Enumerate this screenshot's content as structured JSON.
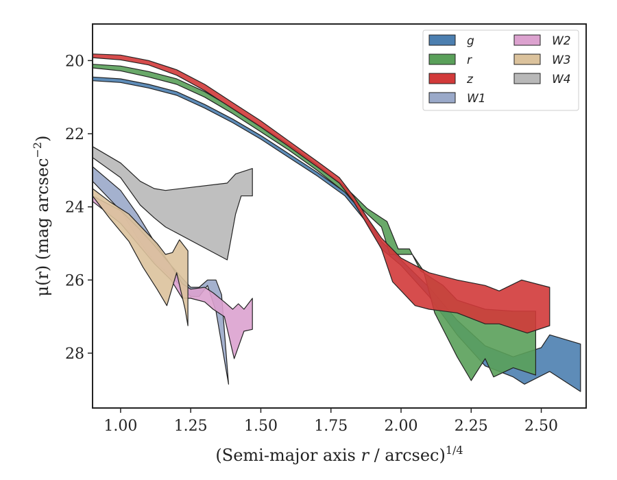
{
  "chart_data": {
    "type": "area",
    "xlabel": "(Semi-major axis r / arcsec)",
    "xlabel_italic": "r",
    "xlabel_exponent": "1/4",
    "ylabel": "μ(r) (mag arcsec",
    "ylabel_exponent": "−2",
    "ylabel_close": ")",
    "xlim": [
      0.9,
      2.66
    ],
    "ylim": [
      29.5,
      19.0
    ],
    "y_inverted": true,
    "x_ticks": [
      1.0,
      1.25,
      1.5,
      1.75,
      2.0,
      2.25,
      2.5
    ],
    "x_tick_labels": [
      "1.00",
      "1.25",
      "1.50",
      "1.75",
      "2.00",
      "2.25",
      "2.50"
    ],
    "y_ticks": [
      20,
      22,
      24,
      26,
      28
    ],
    "y_tick_labels": [
      "20",
      "22",
      "24",
      "26",
      "28"
    ],
    "grid": false,
    "legend_position": "top-right",
    "legend_columns": 2,
    "series": [
      {
        "name": "W4",
        "color": "#b8b8b8",
        "upper": [
          [
            0.9,
            22.35
          ],
          [
            1.0,
            22.8
          ],
          [
            1.07,
            23.3
          ],
          [
            1.12,
            23.5
          ],
          [
            1.16,
            23.55
          ],
          [
            1.38,
            23.35
          ],
          [
            1.41,
            23.1
          ],
          [
            1.47,
            22.95
          ]
        ],
        "lower": [
          [
            0.9,
            22.65
          ],
          [
            1.0,
            23.2
          ],
          [
            1.07,
            23.95
          ],
          [
            1.12,
            24.3
          ],
          [
            1.16,
            24.55
          ],
          [
            1.38,
            25.45
          ],
          [
            1.41,
            24.2
          ],
          [
            1.43,
            23.7
          ],
          [
            1.47,
            23.7
          ]
        ]
      },
      {
        "name": "W1",
        "color": "#9aa9c9",
        "upper": [
          [
            0.9,
            22.9
          ],
          [
            1.0,
            23.55
          ],
          [
            1.06,
            24.2
          ],
          [
            1.12,
            24.95
          ],
          [
            1.18,
            25.6
          ],
          [
            1.22,
            25.95
          ],
          [
            1.25,
            26.2
          ],
          [
            1.28,
            26.2
          ],
          [
            1.31,
            26.0
          ],
          [
            1.34,
            26.0
          ],
          [
            1.36,
            26.4
          ]
        ],
        "lower": [
          [
            0.9,
            23.3
          ],
          [
            1.0,
            24.1
          ],
          [
            1.06,
            24.85
          ],
          [
            1.12,
            25.5
          ],
          [
            1.18,
            25.9
          ],
          [
            1.22,
            26.2
          ],
          [
            1.25,
            26.45
          ],
          [
            1.28,
            26.45
          ],
          [
            1.31,
            26.15
          ],
          [
            1.34,
            26.85
          ],
          [
            1.385,
            28.85
          ]
        ]
      },
      {
        "name": "W2",
        "color": "#dca2cf",
        "upper": [
          [
            0.9,
            23.7
          ],
          [
            1.0,
            24.1
          ],
          [
            1.06,
            24.55
          ],
          [
            1.12,
            25.05
          ],
          [
            1.18,
            25.6
          ],
          [
            1.22,
            26.1
          ],
          [
            1.25,
            26.25
          ],
          [
            1.3,
            26.2
          ],
          [
            1.33,
            26.35
          ],
          [
            1.37,
            26.6
          ],
          [
            1.4,
            26.8
          ],
          [
            1.42,
            26.65
          ],
          [
            1.44,
            26.8
          ],
          [
            1.47,
            26.5
          ]
        ],
        "lower": [
          [
            0.9,
            23.85
          ],
          [
            1.0,
            24.45
          ],
          [
            1.06,
            25.0
          ],
          [
            1.12,
            25.55
          ],
          [
            1.18,
            26.0
          ],
          [
            1.22,
            26.5
          ],
          [
            1.25,
            26.5
          ],
          [
            1.3,
            26.6
          ],
          [
            1.33,
            26.8
          ],
          [
            1.37,
            27.0
          ],
          [
            1.405,
            28.15
          ],
          [
            1.44,
            27.4
          ],
          [
            1.47,
            27.35
          ]
        ]
      },
      {
        "name": "W3",
        "color": "#dbc29c",
        "upper": [
          [
            0.9,
            23.5
          ],
          [
            0.96,
            23.85
          ],
          [
            1.03,
            24.2
          ],
          [
            1.08,
            24.6
          ],
          [
            1.13,
            25.0
          ],
          [
            1.16,
            25.3
          ],
          [
            1.185,
            25.25
          ],
          [
            1.21,
            24.9
          ],
          [
            1.24,
            25.2
          ]
        ],
        "lower": [
          [
            0.9,
            23.7
          ],
          [
            0.96,
            24.3
          ],
          [
            1.03,
            24.95
          ],
          [
            1.08,
            25.65
          ],
          [
            1.13,
            26.25
          ],
          [
            1.165,
            26.7
          ],
          [
            1.2,
            25.8
          ],
          [
            1.23,
            26.8
          ],
          [
            1.24,
            27.25
          ]
        ]
      },
      {
        "name": "g",
        "color": "#4c7fb0",
        "upper": [
          [
            0.9,
            20.45
          ],
          [
            1.0,
            20.5
          ],
          [
            1.1,
            20.65
          ],
          [
            1.2,
            20.85
          ],
          [
            1.3,
            21.2
          ],
          [
            1.4,
            21.6
          ],
          [
            1.5,
            22.05
          ],
          [
            1.6,
            22.55
          ],
          [
            1.7,
            23.05
          ],
          [
            1.8,
            23.6
          ],
          [
            1.88,
            24.3
          ],
          [
            1.93,
            24.95
          ],
          [
            2.0,
            25.45
          ],
          [
            2.1,
            26.2
          ],
          [
            2.2,
            27.1
          ],
          [
            2.3,
            27.8
          ],
          [
            2.4,
            28.1
          ],
          [
            2.5,
            27.85
          ],
          [
            2.53,
            27.5
          ],
          [
            2.64,
            27.75
          ]
        ],
        "lower": [
          [
            0.9,
            20.55
          ],
          [
            1.0,
            20.6
          ],
          [
            1.1,
            20.75
          ],
          [
            1.2,
            20.95
          ],
          [
            1.3,
            21.3
          ],
          [
            1.4,
            21.7
          ],
          [
            1.5,
            22.15
          ],
          [
            1.6,
            22.65
          ],
          [
            1.7,
            23.15
          ],
          [
            1.8,
            23.7
          ],
          [
            1.88,
            24.45
          ],
          [
            1.93,
            25.15
          ],
          [
            2.0,
            25.6
          ],
          [
            2.1,
            26.45
          ],
          [
            2.2,
            27.5
          ],
          [
            2.3,
            28.35
          ],
          [
            2.4,
            28.65
          ],
          [
            2.44,
            28.85
          ],
          [
            2.53,
            28.5
          ],
          [
            2.64,
            29.05
          ]
        ]
      },
      {
        "name": "r",
        "color": "#5aa05a",
        "upper": [
          [
            0.9,
            20.1
          ],
          [
            1.0,
            20.15
          ],
          [
            1.1,
            20.3
          ],
          [
            1.2,
            20.5
          ],
          [
            1.3,
            20.85
          ],
          [
            1.4,
            21.3
          ],
          [
            1.5,
            21.8
          ],
          [
            1.6,
            22.3
          ],
          [
            1.7,
            22.85
          ],
          [
            1.8,
            23.45
          ],
          [
            1.88,
            24.05
          ],
          [
            1.93,
            24.3
          ],
          [
            1.95,
            24.4
          ],
          [
            1.99,
            25.15
          ],
          [
            2.03,
            25.15
          ],
          [
            2.07,
            25.75
          ],
          [
            2.15,
            26.15
          ],
          [
            2.2,
            26.55
          ],
          [
            2.3,
            26.8
          ],
          [
            2.4,
            26.85
          ],
          [
            2.48,
            26.85
          ]
        ],
        "lower": [
          [
            0.9,
            20.2
          ],
          [
            1.0,
            20.28
          ],
          [
            1.1,
            20.45
          ],
          [
            1.2,
            20.65
          ],
          [
            1.3,
            21.0
          ],
          [
            1.4,
            21.45
          ],
          [
            1.5,
            21.95
          ],
          [
            1.6,
            22.45
          ],
          [
            1.7,
            23.0
          ],
          [
            1.8,
            23.6
          ],
          [
            1.88,
            24.2
          ],
          [
            1.93,
            24.55
          ],
          [
            1.96,
            25.3
          ],
          [
            2.04,
            25.3
          ],
          [
            2.08,
            25.75
          ],
          [
            2.12,
            26.9
          ],
          [
            2.2,
            28.1
          ],
          [
            2.25,
            28.75
          ],
          [
            2.3,
            28.15
          ],
          [
            2.33,
            28.65
          ],
          [
            2.4,
            28.4
          ],
          [
            2.48,
            28.6
          ]
        ]
      },
      {
        "name": "z",
        "color": "#d23a3a",
        "upper": [
          [
            0.9,
            19.82
          ],
          [
            1.0,
            19.85
          ],
          [
            1.1,
            20.0
          ],
          [
            1.2,
            20.25
          ],
          [
            1.3,
            20.65
          ],
          [
            1.4,
            21.15
          ],
          [
            1.5,
            21.65
          ],
          [
            1.6,
            22.2
          ],
          [
            1.7,
            22.75
          ],
          [
            1.78,
            23.2
          ],
          [
            1.83,
            23.7
          ],
          [
            1.88,
            24.3
          ],
          [
            1.93,
            24.85
          ],
          [
            2.0,
            25.4
          ],
          [
            2.1,
            25.8
          ],
          [
            2.2,
            26.0
          ],
          [
            2.3,
            26.15
          ],
          [
            2.35,
            26.3
          ],
          [
            2.43,
            26.0
          ],
          [
            2.53,
            26.2
          ]
        ],
        "lower": [
          [
            0.9,
            19.92
          ],
          [
            1.0,
            19.98
          ],
          [
            1.1,
            20.12
          ],
          [
            1.2,
            20.4
          ],
          [
            1.3,
            20.82
          ],
          [
            1.4,
            21.32
          ],
          [
            1.5,
            21.82
          ],
          [
            1.6,
            22.35
          ],
          [
            1.7,
            22.9
          ],
          [
            1.78,
            23.35
          ],
          [
            1.83,
            23.85
          ],
          [
            1.88,
            24.5
          ],
          [
            1.93,
            25.15
          ],
          [
            1.97,
            26.05
          ],
          [
            2.05,
            26.7
          ],
          [
            2.1,
            26.8
          ],
          [
            2.2,
            26.9
          ],
          [
            2.3,
            27.2
          ],
          [
            2.35,
            27.2
          ],
          [
            2.45,
            27.45
          ],
          [
            2.53,
            27.25
          ]
        ]
      }
    ],
    "legend": [
      {
        "name": "g",
        "color": "#4c7fb0"
      },
      {
        "name": "r",
        "color": "#5aa05a"
      },
      {
        "name": "z",
        "color": "#d23a3a"
      },
      {
        "name": "W1",
        "color": "#9aa9c9"
      },
      {
        "name": "W2",
        "color": "#dca2cf"
      },
      {
        "name": "W3",
        "color": "#dbc29c"
      },
      {
        "name": "W4",
        "color": "#b8b8b8"
      }
    ]
  }
}
